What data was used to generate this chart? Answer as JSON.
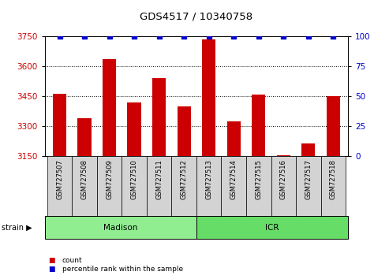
{
  "title": "GDS4517 / 10340758",
  "samples": [
    "GSM727507",
    "GSM727508",
    "GSM727509",
    "GSM727510",
    "GSM727511",
    "GSM727512",
    "GSM727513",
    "GSM727514",
    "GSM727515",
    "GSM727516",
    "GSM727517",
    "GSM727518"
  ],
  "counts": [
    3462,
    3340,
    3635,
    3420,
    3540,
    3400,
    3735,
    3325,
    3460,
    3155,
    3215,
    3450
  ],
  "percentiles": [
    100,
    100,
    100,
    100,
    100,
    100,
    100,
    100,
    100,
    100,
    100,
    100
  ],
  "ylim_left": [
    3150,
    3750
  ],
  "ylim_right": [
    0,
    100
  ],
  "yticks_left": [
    3150,
    3300,
    3450,
    3600,
    3750
  ],
  "yticks_right": [
    0,
    25,
    50,
    75,
    100
  ],
  "bar_color": "#cc0000",
  "dot_color": "#0000cc",
  "madison_count": 6,
  "icr_count": 6,
  "madison_color": "#90ee90",
  "icr_color": "#66dd66",
  "strain_label": "strain"
}
